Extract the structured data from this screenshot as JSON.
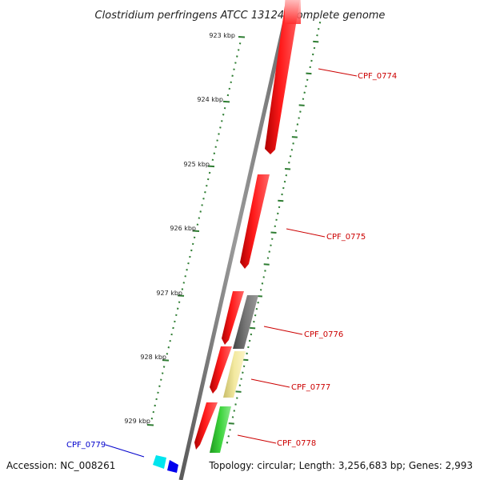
{
  "title": "Clostridium perfringens ATCC 13124, complete genome",
  "accession": "Accession: NC_008261",
  "topology": "Topology: circular; Length: 3,256,683 bp; Genes: 2,993",
  "ticks": [
    {
      "label": "923 kbp"
    },
    {
      "label": "924 kbp"
    },
    {
      "label": "925 kbp"
    },
    {
      "label": "926 kbp"
    },
    {
      "label": "927 kbp"
    },
    {
      "label": "928 kbp"
    },
    {
      "label": "929 kbp"
    }
  ],
  "gene_labels": [
    {
      "name": "CPF_0774",
      "color": "#cc0000"
    },
    {
      "name": "CPF_0775",
      "color": "#cc0000"
    },
    {
      "name": "CPF_0776",
      "color": "#cc0000"
    },
    {
      "name": "CPF_0777",
      "color": "#cc0000"
    },
    {
      "name": "CPF_0778",
      "color": "#cc0000"
    },
    {
      "name": "CPF_0779",
      "color": "#0000cc"
    }
  ],
  "colors": {
    "backbone": "#808080",
    "tick": "#2e7d32",
    "gene_red": "#ff0000",
    "gene_gray": "#666666",
    "gene_khaki": "#f0e68c",
    "gene_green": "#33cc33",
    "gene_cyan": "#00e5ee",
    "gene_blue": "#0000ee"
  }
}
